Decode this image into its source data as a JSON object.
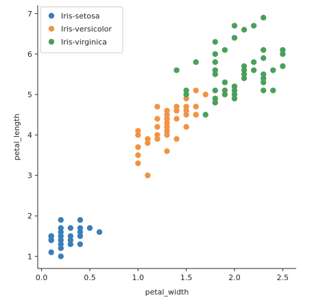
{
  "chart_data": {
    "type": "scatter",
    "xlabel": "petal_width",
    "ylabel": "petal_length",
    "xlim": [
      -0.04,
      2.64
    ],
    "ylim": [
      0.7,
      7.2
    ],
    "xticks": [
      0.0,
      0.5,
      1.0,
      1.5,
      2.0,
      2.5
    ],
    "xtick_labels": [
      "0.0",
      "0.5",
      "1.0",
      "1.5",
      "2.0",
      "2.5"
    ],
    "yticks": [
      1,
      2,
      3,
      4,
      5,
      6,
      7
    ],
    "ytick_labels": [
      "1",
      "2",
      "3",
      "4",
      "5",
      "6",
      "7"
    ],
    "grid": false,
    "legend_position": "top-left",
    "series": [
      {
        "name": "Iris-setosa",
        "color": "#3b7fb8",
        "points": [
          [
            0.1,
            1.4
          ],
          [
            0.1,
            1.5
          ],
          [
            0.1,
            1.1
          ],
          [
            0.1,
            1.5
          ],
          [
            0.1,
            1.5
          ],
          [
            0.1,
            1.4
          ],
          [
            0.2,
            1.0
          ],
          [
            0.2,
            1.2
          ],
          [
            0.2,
            1.3
          ],
          [
            0.2,
            1.4
          ],
          [
            0.2,
            1.5
          ],
          [
            0.2,
            1.6
          ],
          [
            0.2,
            1.7
          ],
          [
            0.2,
            1.9
          ],
          [
            0.3,
            1.3
          ],
          [
            0.3,
            1.4
          ],
          [
            0.3,
            1.5
          ],
          [
            0.3,
            1.7
          ],
          [
            0.4,
            1.3
          ],
          [
            0.4,
            1.5
          ],
          [
            0.4,
            1.6
          ],
          [
            0.4,
            1.7
          ],
          [
            0.4,
            1.9
          ],
          [
            0.5,
            1.7
          ],
          [
            0.6,
            1.6
          ]
        ]
      },
      {
        "name": "Iris-versicolor",
        "color": "#f29342",
        "points": [
          [
            1.0,
            3.3
          ],
          [
            1.0,
            3.5
          ],
          [
            1.0,
            3.7
          ],
          [
            1.0,
            4.0
          ],
          [
            1.0,
            4.1
          ],
          [
            1.1,
            3.0
          ],
          [
            1.1,
            3.8
          ],
          [
            1.1,
            3.9
          ],
          [
            1.2,
            3.9
          ],
          [
            1.2,
            4.0
          ],
          [
            1.2,
            4.2
          ],
          [
            1.2,
            4.4
          ],
          [
            1.2,
            4.7
          ],
          [
            1.3,
            3.6
          ],
          [
            1.3,
            4.0
          ],
          [
            1.3,
            4.1
          ],
          [
            1.3,
            4.2
          ],
          [
            1.3,
            4.3
          ],
          [
            1.3,
            4.4
          ],
          [
            1.3,
            4.5
          ],
          [
            1.3,
            4.6
          ],
          [
            1.4,
            3.9
          ],
          [
            1.4,
            4.4
          ],
          [
            1.4,
            4.6
          ],
          [
            1.4,
            4.7
          ],
          [
            1.5,
            4.2
          ],
          [
            1.5,
            4.5
          ],
          [
            1.5,
            4.6
          ],
          [
            1.5,
            4.7
          ],
          [
            1.5,
            4.9
          ],
          [
            1.6,
            4.5
          ],
          [
            1.6,
            4.7
          ],
          [
            1.6,
            5.1
          ],
          [
            1.7,
            5.0
          ],
          [
            1.8,
            4.8
          ]
        ]
      },
      {
        "name": "Iris-virginica",
        "color": "#4aa05a",
        "points": [
          [
            1.4,
            5.6
          ],
          [
            1.5,
            5.0
          ],
          [
            1.5,
            5.1
          ],
          [
            1.6,
            5.8
          ],
          [
            1.7,
            4.5
          ],
          [
            1.8,
            4.8
          ],
          [
            1.8,
            4.9
          ],
          [
            1.8,
            5.1
          ],
          [
            1.8,
            5.5
          ],
          [
            1.8,
            5.6
          ],
          [
            1.8,
            5.8
          ],
          [
            1.8,
            6.0
          ],
          [
            1.8,
            6.3
          ],
          [
            1.9,
            5.0
          ],
          [
            1.9,
            5.1
          ],
          [
            1.9,
            5.3
          ],
          [
            1.9,
            6.1
          ],
          [
            2.0,
            4.9
          ],
          [
            2.0,
            5.0
          ],
          [
            2.0,
            5.1
          ],
          [
            2.0,
            5.2
          ],
          [
            2.0,
            6.4
          ],
          [
            2.0,
            6.7
          ],
          [
            2.1,
            5.4
          ],
          [
            2.1,
            5.5
          ],
          [
            2.1,
            5.6
          ],
          [
            2.1,
            5.7
          ],
          [
            2.1,
            6.6
          ],
          [
            2.2,
            5.6
          ],
          [
            2.2,
            5.8
          ],
          [
            2.2,
            6.7
          ],
          [
            2.3,
            5.1
          ],
          [
            2.3,
            5.3
          ],
          [
            2.3,
            5.4
          ],
          [
            2.3,
            5.5
          ],
          [
            2.3,
            5.9
          ],
          [
            2.3,
            6.1
          ],
          [
            2.3,
            6.9
          ],
          [
            2.4,
            5.1
          ],
          [
            2.4,
            5.6
          ],
          [
            2.5,
            5.7
          ],
          [
            2.5,
            6.0
          ],
          [
            2.5,
            6.1
          ]
        ]
      }
    ]
  }
}
